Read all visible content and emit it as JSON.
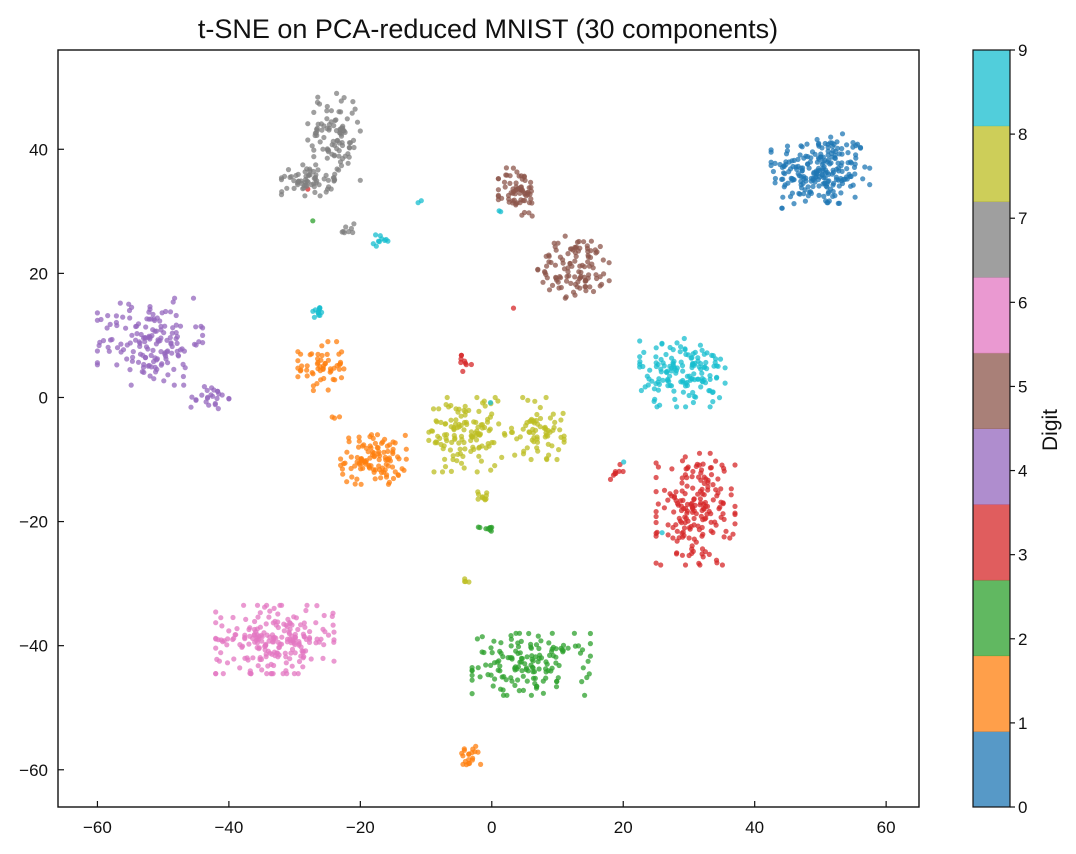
{
  "chart_data": {
    "type": "scatter",
    "title": "t-SNE on PCA-reduced MNIST (30 components)",
    "xlabel": "",
    "ylabel": "",
    "xlim": [
      -66,
      65
    ],
    "ylim": [
      -66,
      56
    ],
    "xticks": [
      -60,
      -40,
      -20,
      0,
      20,
      40,
      60
    ],
    "yticks": [
      -60,
      -40,
      -20,
      0,
      20,
      40
    ],
    "grid": false,
    "point_opacity": 0.75,
    "colorbar": {
      "label": "Digit",
      "ticks": [
        0,
        1,
        2,
        3,
        4,
        5,
        6,
        7,
        8,
        9
      ],
      "range": [
        0,
        9
      ]
    },
    "classes": [
      {
        "digit": 0,
        "color": "#1f77b4"
      },
      {
        "digit": 1,
        "color": "#ff7f0e"
      },
      {
        "digit": 2,
        "color": "#2ca02c"
      },
      {
        "digit": 3,
        "color": "#d62728"
      },
      {
        "digit": 4,
        "color": "#9467bd"
      },
      {
        "digit": 5,
        "color": "#8c564b"
      },
      {
        "digit": 6,
        "color": "#e377c2"
      },
      {
        "digit": 7,
        "color": "#7f7f7f"
      },
      {
        "digit": 8,
        "color": "#bcbd22"
      },
      {
        "digit": 9,
        "color": "#17becf"
      }
    ],
    "clusters": [
      {
        "digit": 0,
        "cx": 50,
        "cy": 36.5,
        "rx": 7.5,
        "ry": 6,
        "n": 230
      },
      {
        "digit": 1,
        "cx": -26,
        "cy": 5,
        "rx": 3.5,
        "ry": 4,
        "n": 55
      },
      {
        "digit": 1,
        "cx": -18,
        "cy": -10,
        "rx": 5,
        "ry": 4,
        "n": 110
      },
      {
        "digit": 1,
        "cx": -3.5,
        "cy": -58,
        "rx": 1.8,
        "ry": 2,
        "n": 20
      },
      {
        "digit": 1,
        "cx": -24,
        "cy": -3,
        "rx": 1.2,
        "ry": 0.8,
        "n": 3
      },
      {
        "digit": 2,
        "cx": 6,
        "cy": -43,
        "rx": 9,
        "ry": 5,
        "n": 150
      },
      {
        "digit": 2,
        "cx": -1,
        "cy": -21,
        "rx": 1.4,
        "ry": 0.6,
        "n": 10
      },
      {
        "digit": 2,
        "cx": -27,
        "cy": 28.5,
        "rx": 0.3,
        "ry": 0.3,
        "n": 1
      },
      {
        "digit": 3,
        "cx": 31,
        "cy": -18,
        "rx": 6,
        "ry": 9,
        "n": 190
      },
      {
        "digit": 3,
        "cx": -4,
        "cy": 5.5,
        "rx": 1.2,
        "ry": 1.3,
        "n": 9
      },
      {
        "digit": 3,
        "cx": 19,
        "cy": -12,
        "rx": 1.2,
        "ry": 1.2,
        "n": 8
      },
      {
        "digit": 3,
        "cx": -28,
        "cy": 33.5,
        "rx": 0.3,
        "ry": 0.3,
        "n": 1
      },
      {
        "digit": 3,
        "cx": 3,
        "cy": 14.5,
        "rx": 0.3,
        "ry": 0.3,
        "n": 1
      },
      {
        "digit": 4,
        "cx": -52,
        "cy": 9,
        "rx": 8,
        "ry": 7,
        "n": 160
      },
      {
        "digit": 4,
        "cx": -43,
        "cy": 0,
        "rx": 3,
        "ry": 2,
        "n": 25
      },
      {
        "digit": 5,
        "cx": 4,
        "cy": 33,
        "rx": 3,
        "ry": 4,
        "n": 70
      },
      {
        "digit": 5,
        "cx": 13,
        "cy": 21,
        "rx": 6,
        "ry": 5,
        "n": 110
      },
      {
        "digit": 6,
        "cx": -33,
        "cy": -39,
        "rx": 9,
        "ry": 5.5,
        "n": 220
      },
      {
        "digit": 7,
        "cx": -24,
        "cy": 42,
        "rx": 4,
        "ry": 7,
        "n": 100
      },
      {
        "digit": 7,
        "cx": -28,
        "cy": 35,
        "rx": 4,
        "ry": 2.5,
        "n": 60
      },
      {
        "digit": 7,
        "cx": -22,
        "cy": 27,
        "rx": 1.2,
        "ry": 1.5,
        "n": 8
      },
      {
        "digit": 8,
        "cx": -4,
        "cy": -6,
        "rx": 6,
        "ry": 6,
        "n": 130
      },
      {
        "digit": 8,
        "cx": 7,
        "cy": -5,
        "rx": 4,
        "ry": 5,
        "n": 70
      },
      {
        "digit": 8,
        "cx": -1,
        "cy": -16,
        "rx": 1.5,
        "ry": 1,
        "n": 10
      },
      {
        "digit": 8,
        "cx": -4,
        "cy": -29.5,
        "rx": 0.8,
        "ry": 0.5,
        "n": 4
      },
      {
        "digit": 9,
        "cx": 29,
        "cy": 4,
        "rx": 6.5,
        "ry": 5.5,
        "n": 150
      },
      {
        "digit": 9,
        "cx": -26.5,
        "cy": 14,
        "rx": 1.2,
        "ry": 1.2,
        "n": 12
      },
      {
        "digit": 9,
        "cx": -17,
        "cy": 25,
        "rx": 1.2,
        "ry": 1.2,
        "n": 10
      },
      {
        "digit": 9,
        "cx": 1.5,
        "cy": 30,
        "rx": 0.4,
        "ry": 0.3,
        "n": 2
      },
      {
        "digit": 9,
        "cx": -11,
        "cy": 31.5,
        "rx": 0.3,
        "ry": 0.3,
        "n": 2
      },
      {
        "digit": 9,
        "cx": 20,
        "cy": -10.5,
        "rx": 0.3,
        "ry": 0.3,
        "n": 1
      },
      {
        "digit": 9,
        "cx": 26,
        "cy": -21.5,
        "rx": 0.3,
        "ry": 0.3,
        "n": 1
      },
      {
        "digit": 9,
        "cx": -0.5,
        "cy": -1,
        "rx": 0.3,
        "ry": 0.3,
        "n": 1
      }
    ]
  }
}
